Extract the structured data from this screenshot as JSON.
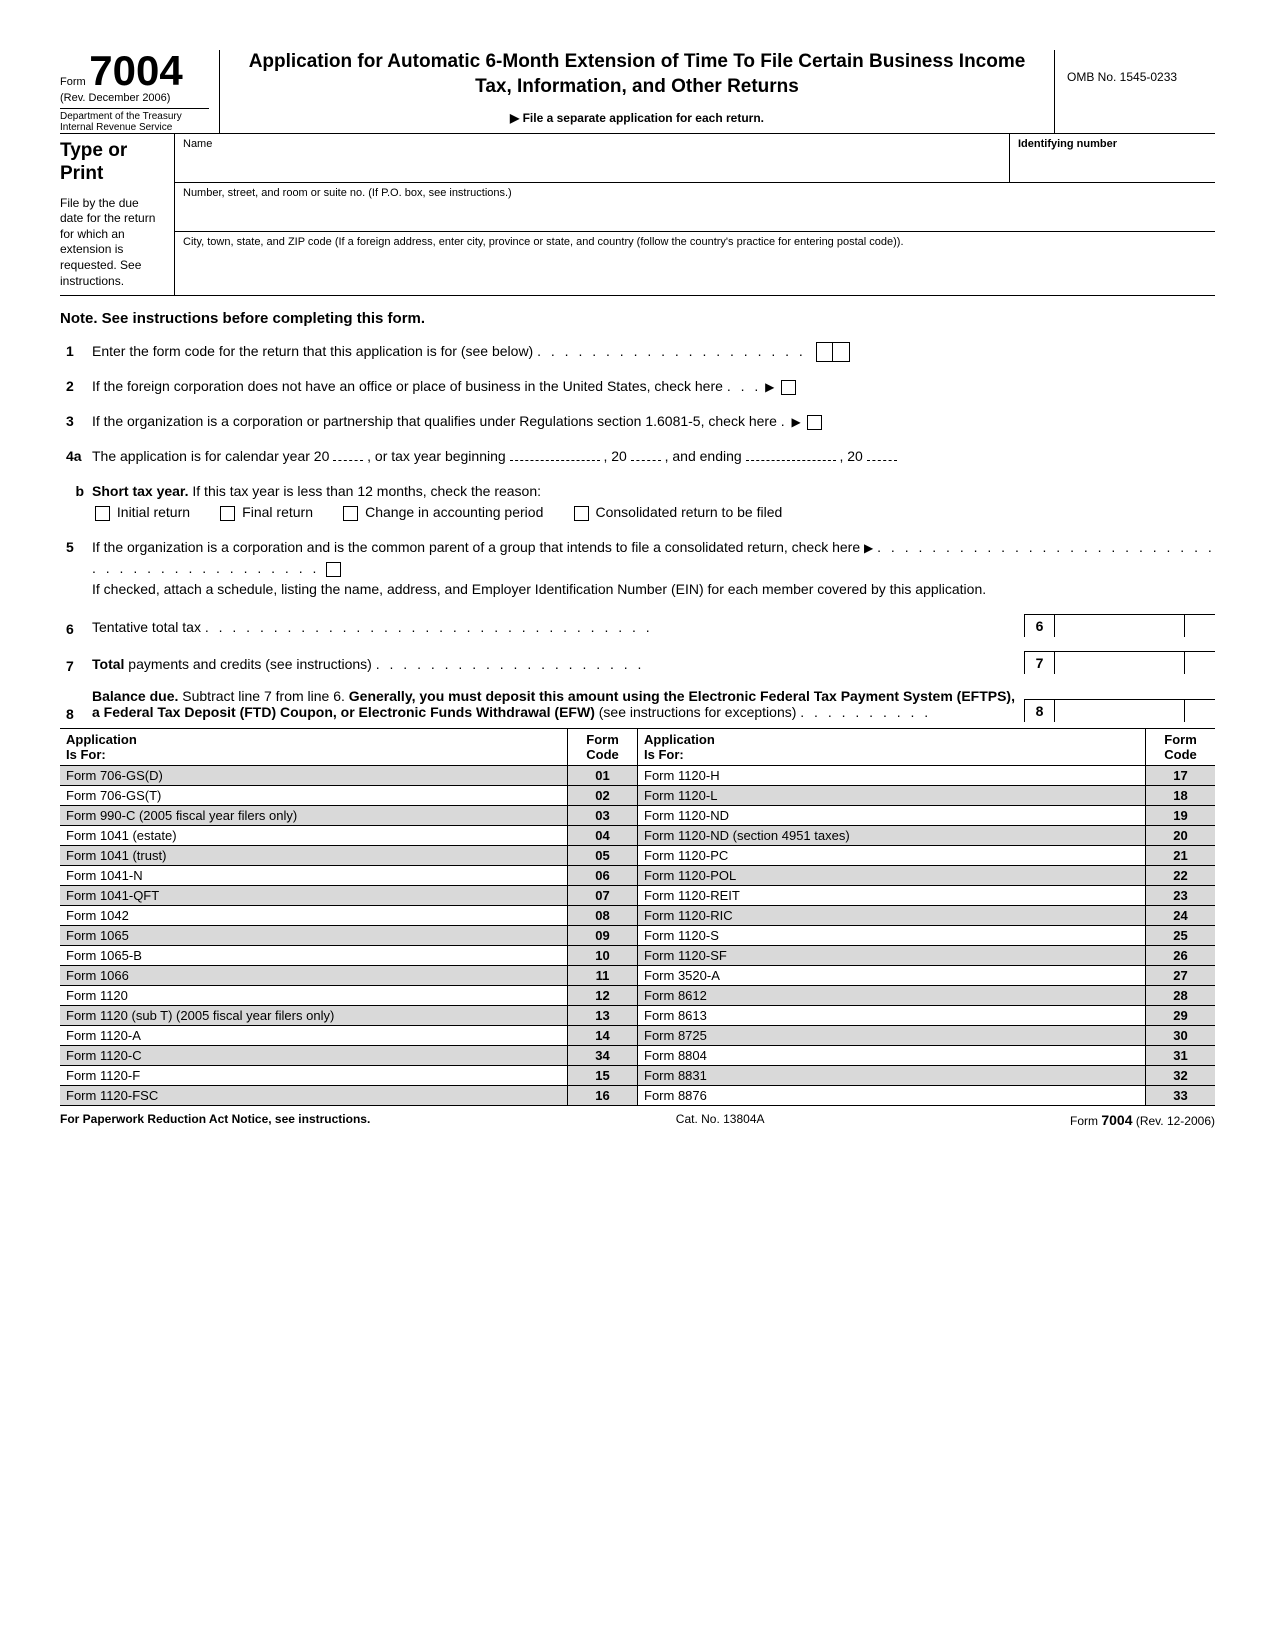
{
  "header": {
    "form_label": "Form",
    "form_number": "7004",
    "revision": "(Rev. December 2006)",
    "dept1": "Department of the Treasury",
    "dept2": "Internal Revenue Service",
    "title": "Application for Automatic 6-Month Extension of Time To File Certain Business Income Tax, Information, and Other Returns",
    "subtitle": "File a separate application for each return.",
    "omb": "OMB No. 1545-0233"
  },
  "id": {
    "type_print": "Type or Print",
    "instructions": "File by the due date for the return for which an extension is requested. See instructions.",
    "name_label": "Name",
    "id_number_label": "Identifying number",
    "address_label": "Number, street, and room or suite no. (If P.O. box, see instructions.)",
    "city_label": "City, town, state, and ZIP code (If a foreign address, enter city, province or state, and country (follow the country's practice for entering postal code))."
  },
  "note": "Note. See instructions before completing this form.",
  "lines": {
    "l1": "Enter the form code for the return that this application is for (see below)",
    "l2": "If the foreign corporation does not have an office or place of business in the United States, check here",
    "l3": "If the organization is a corporation or partnership that qualifies under Regulations section 1.6081-5, check here",
    "l4a_a": "The application is for calendar year 20",
    "l4a_b": ", or tax year beginning",
    "l4a_c": ", 20",
    "l4a_d": ", and ending",
    "l4a_e": ", 20",
    "l4b_label": "Short tax year.",
    "l4b_text": " If this tax year is less than 12 months, check the reason:",
    "l4b_opt1": "Initial return",
    "l4b_opt2": "Final return",
    "l4b_opt3": "Change in accounting period",
    "l4b_opt4": "Consolidated return to be filed",
    "l5a": "If the organization is a corporation and is the common parent of a group that intends to file a consolidated return, check here",
    "l5b": "If checked, attach a schedule, listing the name, address, and Employer Identification Number (EIN) for each member covered by this application.",
    "l6": "Tentative total tax",
    "l7_bold": "Total",
    "l7_rest": " payments and credits (see instructions)",
    "l8_bold1": "Balance due.",
    "l8_mid": " Subtract line 7 from line 6. ",
    "l8_bold2": "Generally, you must deposit this amount using the Electronic Federal Tax Payment System (EFTPS), a Federal Tax Deposit (FTD) Coupon, or Electronic Funds Withdrawal (EFW)",
    "l8_end": " (see instructions for exceptions)"
  },
  "table": {
    "header_app": "Application\nIs For:",
    "header_code": "Form\nCode",
    "left": [
      {
        "app": "Form 706-GS(D)",
        "code": "01",
        "shade": true
      },
      {
        "app": "Form 706-GS(T)",
        "code": "02",
        "shade": false
      },
      {
        "app": "Form 990-C (2005 fiscal year filers only)",
        "code": "03",
        "shade": true
      },
      {
        "app": "Form 1041 (estate)",
        "code": "04",
        "shade": false
      },
      {
        "app": "Form 1041 (trust)",
        "code": "05",
        "shade": true
      },
      {
        "app": "Form 1041-N",
        "code": "06",
        "shade": false
      },
      {
        "app": "Form 1041-QFT",
        "code": "07",
        "shade": true
      },
      {
        "app": "Form 1042",
        "code": "08",
        "shade": false
      },
      {
        "app": "Form 1065",
        "code": "09",
        "shade": true
      },
      {
        "app": "Form 1065-B",
        "code": "10",
        "shade": false
      },
      {
        "app": "Form 1066",
        "code": "11",
        "shade": true
      },
      {
        "app": "Form 1120",
        "code": "12",
        "shade": false
      },
      {
        "app": "Form 1120 (sub T) (2005 fiscal year filers only)",
        "code": "13",
        "shade": true
      },
      {
        "app": "Form 1120-A",
        "code": "14",
        "shade": false
      },
      {
        "app": "Form 1120-C",
        "code": "34",
        "shade": true
      },
      {
        "app": "Form 1120-F",
        "code": "15",
        "shade": false
      },
      {
        "app": "Form 1120-FSC",
        "code": "16",
        "shade": true
      }
    ],
    "right": [
      {
        "app": "Form 1120-H",
        "code": "17",
        "shade": false
      },
      {
        "app": "Form 1120-L",
        "code": "18",
        "shade": true
      },
      {
        "app": "Form 1120-ND",
        "code": "19",
        "shade": false
      },
      {
        "app": "Form 1120-ND (section 4951 taxes)",
        "code": "20",
        "shade": true
      },
      {
        "app": "Form 1120-PC",
        "code": "21",
        "shade": false
      },
      {
        "app": "Form 1120-POL",
        "code": "22",
        "shade": true
      },
      {
        "app": "Form 1120-REIT",
        "code": "23",
        "shade": false
      },
      {
        "app": "Form 1120-RIC",
        "code": "24",
        "shade": true
      },
      {
        "app": "Form 1120-S",
        "code": "25",
        "shade": false
      },
      {
        "app": "Form 1120-SF",
        "code": "26",
        "shade": true
      },
      {
        "app": "Form 3520-A",
        "code": "27",
        "shade": false
      },
      {
        "app": "Form 8612",
        "code": "28",
        "shade": true
      },
      {
        "app": "Form 8613",
        "code": "29",
        "shade": false
      },
      {
        "app": "Form 8725",
        "code": "30",
        "shade": true
      },
      {
        "app": "Form 8804",
        "code": "31",
        "shade": false
      },
      {
        "app": "Form 8831",
        "code": "32",
        "shade": true
      },
      {
        "app": "Form 8876",
        "code": "33",
        "shade": false
      }
    ]
  },
  "footer": {
    "left": "For Paperwork Reduction Act Notice, see instructions.",
    "cat": "Cat. No. 13804A",
    "right_form": "Form",
    "right_num": "7004",
    "right_rev": "(Rev. 12-2006)"
  }
}
